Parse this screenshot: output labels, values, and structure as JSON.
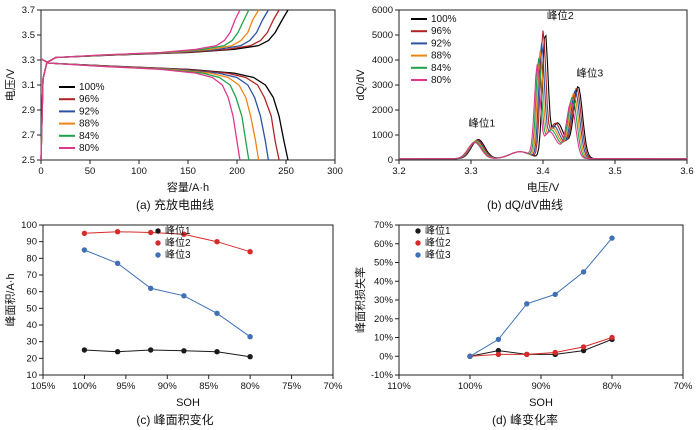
{
  "figure": {
    "captions": {
      "a": "(a) 充放电曲线",
      "b": "(b) dQ/dV曲线",
      "c": "(c) 峰面积变化",
      "d": "(d) 峰变化率"
    }
  },
  "chart_data": [
    {
      "id": "a",
      "type": "line",
      "xlabel": "容量/A·h",
      "ylabel": "电压/V",
      "xlim": [
        0,
        300
      ],
      "xticks": [
        0,
        50,
        100,
        150,
        200,
        250,
        300
      ],
      "xtick_labels": [
        "0",
        "50",
        "100",
        "150",
        "200",
        "250",
        "300"
      ],
      "ylim": [
        2.5,
        3.7
      ],
      "yticks": [
        2.5,
        2.7,
        2.9,
        3.1,
        3.3,
        3.5,
        3.7
      ],
      "ytick_labels": [
        "2.5",
        "2.7",
        "2.9",
        "3.1",
        "3.3",
        "3.5",
        "3.7"
      ],
      "legend_position": "center-left",
      "series": [
        {
          "name": "100%",
          "color": "#000000",
          "charge": [
            [
              0,
              2.5
            ],
            [
              2,
              3.15
            ],
            [
              6,
              3.28
            ],
            [
              15,
              3.32
            ],
            [
              76,
              3.34
            ],
            [
              151,
              3.36
            ],
            [
              197,
              3.385
            ],
            [
              222,
              3.415
            ],
            [
              232,
              3.455
            ],
            [
              239,
              3.52
            ],
            [
              246,
              3.62
            ],
            [
              252,
              3.7
            ]
          ],
          "discharge": [
            [
              0,
              3.31
            ],
            [
              8,
              3.275
            ],
            [
              76,
              3.25
            ],
            [
              151,
              3.225
            ],
            [
              197,
              3.195
            ],
            [
              217,
              3.16
            ],
            [
              229,
              3.1
            ],
            [
              237,
              3.0
            ],
            [
              243,
              2.85
            ],
            [
              248,
              2.65
            ],
            [
              252,
              2.5
            ]
          ]
        },
        {
          "name": "96%",
          "color": "#b22222",
          "charge": [
            [
              0,
              2.5
            ],
            [
              2,
              3.15
            ],
            [
              6,
              3.28
            ],
            [
              15,
              3.32
            ],
            [
              73,
              3.34
            ],
            [
              146,
              3.36
            ],
            [
              190,
              3.385
            ],
            [
              214,
              3.415
            ],
            [
              224,
              3.455
            ],
            [
              231,
              3.52
            ],
            [
              237,
              3.62
            ],
            [
              243,
              3.7
            ]
          ],
          "discharge": [
            [
              0,
              3.31
            ],
            [
              8,
              3.275
            ],
            [
              73,
              3.25
            ],
            [
              146,
              3.225
            ],
            [
              190,
              3.195
            ],
            [
              209,
              3.16
            ],
            [
              221,
              3.1
            ],
            [
              228,
              3.0
            ],
            [
              235,
              2.85
            ],
            [
              239,
              2.65
            ],
            [
              243,
              2.5
            ]
          ]
        },
        {
          "name": "92%",
          "color": "#2b52a0",
          "charge": [
            [
              0,
              2.5
            ],
            [
              2,
              3.15
            ],
            [
              6,
              3.28
            ],
            [
              15,
              3.32
            ],
            [
              70,
              3.34
            ],
            [
              139,
              3.36
            ],
            [
              181,
              3.385
            ],
            [
              204,
              3.415
            ],
            [
              213,
              3.455
            ],
            [
              220,
              3.52
            ],
            [
              226,
              3.62
            ],
            [
              232,
              3.7
            ]
          ],
          "discharge": [
            [
              0,
              3.31
            ],
            [
              8,
              3.275
            ],
            [
              70,
              3.25
            ],
            [
              139,
              3.225
            ],
            [
              181,
              3.195
            ],
            [
              200,
              3.16
            ],
            [
              211,
              3.1
            ],
            [
              218,
              3.0
            ],
            [
              224,
              2.85
            ],
            [
              229,
              2.65
            ],
            [
              232,
              2.5
            ]
          ]
        },
        {
          "name": "88%",
          "color": "#ee8512",
          "charge": [
            [
              0,
              2.5
            ],
            [
              2,
              3.15
            ],
            [
              6,
              3.28
            ],
            [
              15,
              3.32
            ],
            [
              67,
              3.34
            ],
            [
              133,
              3.36
            ],
            [
              173,
              3.385
            ],
            [
              195,
              3.415
            ],
            [
              204,
              3.455
            ],
            [
              211,
              3.52
            ],
            [
              216,
              3.62
            ],
            [
              222,
              3.7
            ]
          ],
          "discharge": [
            [
              0,
              3.31
            ],
            [
              8,
              3.275
            ],
            [
              67,
              3.25
            ],
            [
              133,
              3.225
            ],
            [
              173,
              3.195
            ],
            [
              191,
              3.16
            ],
            [
              202,
              3.1
            ],
            [
              209,
              3.0
            ],
            [
              214,
              2.85
            ],
            [
              219,
              2.65
            ],
            [
              222,
              2.5
            ]
          ]
        },
        {
          "name": "84%",
          "color": "#1fa24a",
          "charge": [
            [
              0,
              2.5
            ],
            [
              2,
              3.15
            ],
            [
              6,
              3.28
            ],
            [
              15,
              3.32
            ],
            [
              64,
              3.34
            ],
            [
              127,
              3.36
            ],
            [
              165,
              3.385
            ],
            [
              187,
              3.415
            ],
            [
              195,
              3.455
            ],
            [
              201,
              3.52
            ],
            [
              207,
              3.62
            ],
            [
              212,
              3.7
            ]
          ],
          "discharge": [
            [
              0,
              3.31
            ],
            [
              8,
              3.275
            ],
            [
              64,
              3.25
            ],
            [
              127,
              3.225
            ],
            [
              165,
              3.195
            ],
            [
              182,
              3.16
            ],
            [
              193,
              3.1
            ],
            [
              199,
              3.0
            ],
            [
              205,
              2.85
            ],
            [
              209,
              2.65
            ],
            [
              212,
              2.5
            ]
          ]
        },
        {
          "name": "80%",
          "color": "#e0368e",
          "charge": [
            [
              0,
              2.5
            ],
            [
              2,
              3.15
            ],
            [
              6,
              3.28
            ],
            [
              15,
              3.32
            ],
            [
              61,
              3.34
            ],
            [
              122,
              3.36
            ],
            [
              158,
              3.385
            ],
            [
              179,
              3.415
            ],
            [
              187,
              3.455
            ],
            [
              193,
              3.52
            ],
            [
              198,
              3.62
            ],
            [
              203,
              3.7
            ]
          ],
          "discharge": [
            [
              0,
              3.31
            ],
            [
              8,
              3.275
            ],
            [
              61,
              3.25
            ],
            [
              122,
              3.225
            ],
            [
              158,
              3.195
            ],
            [
              175,
              3.16
            ],
            [
              185,
              3.1
            ],
            [
              191,
              3.0
            ],
            [
              196,
              2.85
            ],
            [
              200,
              2.65
            ],
            [
              203,
              2.5
            ]
          ]
        }
      ]
    },
    {
      "id": "b",
      "type": "line",
      "xlabel": "电压/V",
      "ylabel": "dQ/dV",
      "xlim": [
        3.2,
        3.6
      ],
      "xticks": [
        3.2,
        3.3,
        3.4,
        3.5,
        3.6
      ],
      "xtick_labels": [
        "3.2",
        "3.3",
        "3.4",
        "3.5",
        "3.6"
      ],
      "ylim": [
        0,
        6000
      ],
      "yticks": [
        0,
        1000,
        2000,
        3000,
        4000,
        5000,
        6000
      ],
      "ytick_labels": [
        "0",
        "1000",
        "2000",
        "3000",
        "4000",
        "5000",
        "6000"
      ],
      "legend_position": "top-left",
      "annotations": [
        {
          "text": "峰位1",
          "x": 3.315,
          "y": 1350
        },
        {
          "text": "峰位2",
          "x": 3.424,
          "y": 5650
        },
        {
          "text": "峰位3",
          "x": 3.465,
          "y": 3350
        }
      ],
      "series": [
        {
          "name": "100%",
          "color": "#000000",
          "peaks": [
            [
              3.31,
              820
            ],
            [
              3.403,
              5050
            ],
            [
              3.449,
              2950
            ]
          ]
        },
        {
          "name": "96%",
          "color": "#b22222",
          "peaks": [
            [
              3.309,
              800
            ],
            [
              3.4,
              5150
            ],
            [
              3.447,
              2880
            ]
          ]
        },
        {
          "name": "92%",
          "color": "#2b52a0",
          "peaks": [
            [
              3.308,
              780
            ],
            [
              3.398,
              4650
            ],
            [
              3.445,
              2780
            ]
          ]
        },
        {
          "name": "88%",
          "color": "#ee8512",
          "peaks": [
            [
              3.307,
              760
            ],
            [
              3.396,
              4350
            ],
            [
              3.443,
              2680
            ]
          ]
        },
        {
          "name": "84%",
          "color": "#1fa24a",
          "peaks": [
            [
              3.306,
              730
            ],
            [
              3.394,
              4050
            ],
            [
              3.441,
              2550
            ]
          ]
        },
        {
          "name": "80%",
          "color": "#e0368e",
          "peaks": [
            [
              3.305,
              700
            ],
            [
              3.392,
              3800
            ],
            [
              3.439,
              2350
            ]
          ]
        }
      ]
    },
    {
      "id": "c",
      "type": "scatter",
      "xlabel": "SOH",
      "ylabel": "峰面积/A·h",
      "xlim": [
        105,
        70
      ],
      "xticks": [
        105,
        100,
        95,
        90,
        85,
        80,
        75,
        70
      ],
      "xtick_labels": [
        "105%",
        "100%",
        "95%",
        "90%",
        "85%",
        "80%",
        "75%",
        "70%"
      ],
      "ylim": [
        10,
        100
      ],
      "yticks": [
        10,
        20,
        30,
        40,
        50,
        60,
        70,
        80,
        90,
        100
      ],
      "ytick_labels": [
        "10",
        "20",
        "30",
        "40",
        "50",
        "60",
        "70",
        "80",
        "90",
        "100"
      ],
      "legend_position": "top-center",
      "x": [
        100,
        96,
        92,
        88,
        84,
        80
      ],
      "series": [
        {
          "name": "峰位1",
          "color": "#1a1a1a",
          "values": [
            25,
            24,
            25,
            24.5,
            24,
            21
          ]
        },
        {
          "name": "峰位2",
          "color": "#d62b2b",
          "values": [
            95,
            96,
            95.5,
            94.5,
            90,
            84
          ]
        },
        {
          "name": "峰位3",
          "color": "#3f6fb5",
          "values": [
            85,
            77,
            62,
            57.5,
            47,
            33
          ]
        }
      ]
    },
    {
      "id": "d",
      "type": "scatter",
      "xlabel": "SOH",
      "ylabel": "峰面积损失率",
      "xlim": [
        110,
        70
      ],
      "xticks": [
        110,
        100,
        90,
        80,
        70
      ],
      "xtick_labels": [
        "110%",
        "100%",
        "90%",
        "80%",
        "70%"
      ],
      "ylim": [
        -10,
        70
      ],
      "yticks": [
        -10,
        0,
        10,
        20,
        30,
        40,
        50,
        60,
        70
      ],
      "ytick_labels": [
        "-10%",
        "0%",
        "10%",
        "20%",
        "30%",
        "40%",
        "50%",
        "60%",
        "70%"
      ],
      "legend_position": "top-left",
      "x": [
        100,
        96,
        92,
        88,
        84,
        80
      ],
      "series": [
        {
          "name": "峰位1",
          "color": "#1a1a1a",
          "values": [
            0,
            3,
            1,
            1,
            3,
            9
          ]
        },
        {
          "name": "峰位2",
          "color": "#d62b2b",
          "values": [
            0,
            1,
            1,
            2,
            5,
            10
          ]
        },
        {
          "name": "峰位3",
          "color": "#3f6fb5",
          "values": [
            0,
            9,
            28,
            33,
            45,
            63
          ]
        }
      ]
    }
  ]
}
